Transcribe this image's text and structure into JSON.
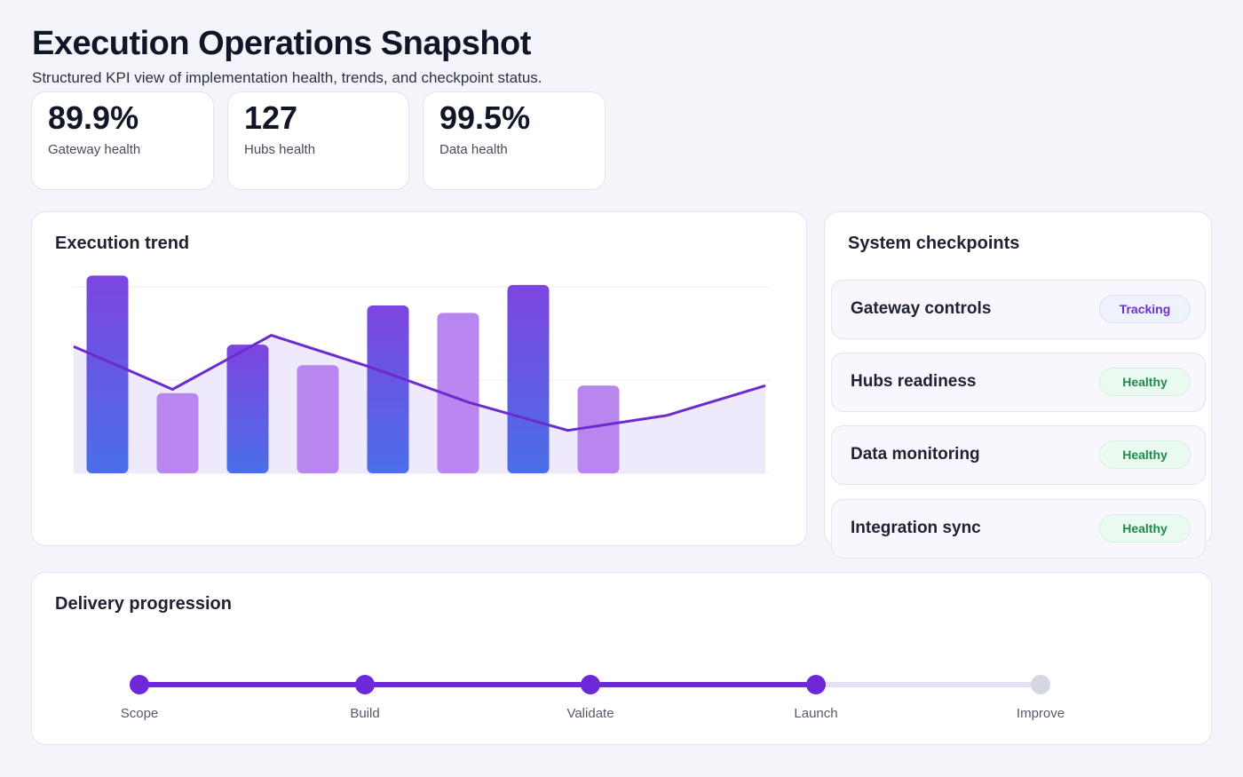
{
  "header": {
    "title": "Execution Operations Snapshot",
    "subtitle": "Structured KPI view of implementation health, trends, and checkpoint status."
  },
  "kpis": [
    {
      "value": "89.9%",
      "label": "Gateway health"
    },
    {
      "value": "127",
      "label": "Hubs health"
    },
    {
      "value": "99.5%",
      "label": "Data health"
    }
  ],
  "trend": {
    "title": "Execution trend"
  },
  "chart_data": {
    "type": "bar",
    "title": "Execution trend",
    "ylim": [
      0,
      100
    ],
    "grid": true,
    "bars": [
      106,
      43,
      69,
      58,
      90,
      86,
      101,
      47
    ],
    "line": [
      68,
      45,
      74,
      57,
      38,
      23,
      31,
      47
    ],
    "colors": {
      "bar_dark_top": "#7d45e0",
      "bar_dark_bottom": "#4a6fe8",
      "bar_light": "#b985ee",
      "line": "#6a2ccf",
      "area": "#ece6fa"
    }
  },
  "checkpoints": {
    "title": "System checkpoints",
    "items": [
      {
        "name": "Gateway controls",
        "status": "Tracking"
      },
      {
        "name": "Hubs readiness",
        "status": "Healthy"
      },
      {
        "name": "Data monitoring",
        "status": "Healthy"
      },
      {
        "name": "Integration sync",
        "status": "Healthy"
      }
    ]
  },
  "delivery": {
    "title": "Delivery progression",
    "progress_completed_steps": 4,
    "steps": [
      "Scope",
      "Build",
      "Validate",
      "Launch",
      "Improve"
    ],
    "colors": {
      "done": "#6d28d9",
      "pending": "#d4d6e2",
      "track_pending": "#e2e0f2"
    }
  }
}
